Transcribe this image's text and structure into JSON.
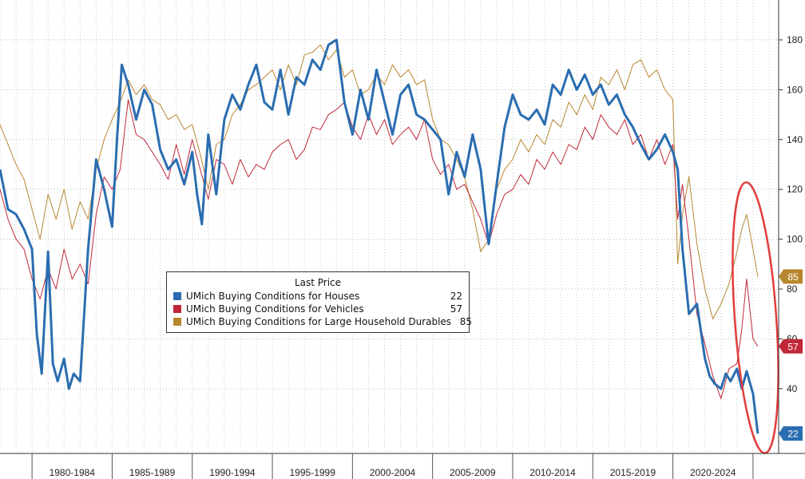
{
  "chart_data": {
    "type": "line",
    "title": "",
    "xlabel": "",
    "ylabel": "",
    "ylim": [
      14,
      196
    ],
    "xlim": [
      1978.0,
      2026.6
    ],
    "y_ticks": [
      40,
      60,
      80,
      100,
      120,
      140,
      160,
      180
    ],
    "y_tick_labels": [
      "40",
      "60",
      "80",
      "100",
      "120",
      "140",
      "160",
      "180"
    ],
    "x_period_labels": [
      "1980-1984",
      "1985-1989",
      "1990-1994",
      "1995-1999",
      "2000-2004",
      "2005-2009",
      "2010-2014",
      "2015-2019",
      "2020-2024"
    ],
    "x_period_starts": [
      1980,
      1985,
      1990,
      1995,
      2000,
      2005,
      2010,
      2015,
      2020
    ],
    "x_period_end": 2025,
    "grid": true,
    "legend": {
      "title": "Last Price",
      "position": "center-left"
    },
    "series": [
      {
        "name": "UMich Buying Conditions for Houses",
        "last": "22",
        "color": "#2a6db0",
        "x": [
          1978.0,
          1978.5,
          1979.0,
          1979.5,
          1980.0,
          1980.3,
          1980.6,
          1981.0,
          1981.3,
          1981.6,
          1982.0,
          1982.3,
          1982.6,
          1983.0,
          1983.5,
          1984.0,
          1984.5,
          1985.0,
          1985.3,
          1985.6,
          1986.0,
          1986.5,
          1987.0,
          1987.5,
          1988.0,
          1988.5,
          1989.0,
          1989.5,
          1990.0,
          1990.3,
          1990.6,
          1991.0,
          1991.5,
          1992.0,
          1992.5,
          1993.0,
          1993.5,
          1994.0,
          1994.5,
          1995.0,
          1995.5,
          1996.0,
          1996.5,
          1997.0,
          1997.5,
          1998.0,
          1998.5,
          1999.0,
          1999.5,
          2000.0,
          2000.5,
          2001.0,
          2001.5,
          2002.0,
          2002.5,
          2003.0,
          2003.5,
          2004.0,
          2004.5,
          2005.0,
          2005.5,
          2006.0,
          2006.5,
          2007.0,
          2007.5,
          2008.0,
          2008.5,
          2009.0,
          2009.5,
          2010.0,
          2010.5,
          2011.0,
          2011.5,
          2012.0,
          2012.5,
          2013.0,
          2013.5,
          2014.0,
          2014.5,
          2015.0,
          2015.5,
          2016.0,
          2016.5,
          2017.0,
          2017.5,
          2018.0,
          2018.5,
          2019.0,
          2019.5,
          2020.0,
          2020.3,
          2020.6,
          2021.0,
          2021.5,
          2022.0,
          2022.3,
          2022.6,
          2023.0,
          2023.3,
          2023.6,
          2024.0,
          2024.3,
          2024.6,
          2025.0,
          2025.3
        ],
        "y": [
          128,
          112,
          110,
          104,
          96,
          62,
          46,
          95,
          50,
          43,
          52,
          40,
          46,
          43,
          96,
          132,
          120,
          105,
          140,
          170,
          162,
          148,
          160,
          154,
          136,
          128,
          132,
          122,
          135,
          118,
          106,
          142,
          118,
          148,
          158,
          152,
          162,
          170,
          155,
          152,
          168,
          150,
          165,
          162,
          172,
          168,
          178,
          180,
          155,
          142,
          160,
          148,
          168,
          155,
          142,
          158,
          162,
          150,
          148,
          144,
          140,
          118,
          135,
          125,
          142,
          128,
          98,
          122,
          145,
          158,
          150,
          148,
          152,
          146,
          162,
          158,
          168,
          160,
          166,
          158,
          162,
          154,
          158,
          150,
          145,
          138,
          132,
          136,
          142,
          135,
          128,
          96,
          70,
          74,
          52,
          45,
          42,
          40,
          46,
          43,
          48,
          40,
          47,
          38,
          22
        ]
      },
      {
        "name": "UMich Buying Conditions for Vehicles",
        "last": "57",
        "color": "#c0283a",
        "x": [
          1978.0,
          1978.5,
          1979.0,
          1979.5,
          1980.0,
          1980.5,
          1981.0,
          1981.5,
          1982.0,
          1982.5,
          1983.0,
          1983.5,
          1984.0,
          1984.5,
          1985.0,
          1985.5,
          1986.0,
          1986.5,
          1987.0,
          1987.5,
          1988.0,
          1988.5,
          1989.0,
          1989.5,
          1990.0,
          1990.5,
          1991.0,
          1991.5,
          1992.0,
          1992.5,
          1993.0,
          1993.5,
          1994.0,
          1994.5,
          1995.0,
          1995.5,
          1996.0,
          1996.5,
          1997.0,
          1997.5,
          1998.0,
          1998.5,
          1999.0,
          1999.5,
          2000.0,
          2000.5,
          2001.0,
          2001.5,
          2002.0,
          2002.5,
          2003.0,
          2003.5,
          2004.0,
          2004.5,
          2005.0,
          2005.5,
          2006.0,
          2006.5,
          2007.0,
          2007.5,
          2008.0,
          2008.5,
          2009.0,
          2009.5,
          2010.0,
          2010.5,
          2011.0,
          2011.5,
          2012.0,
          2012.5,
          2013.0,
          2013.5,
          2014.0,
          2014.5,
          2015.0,
          2015.5,
          2016.0,
          2016.5,
          2017.0,
          2017.5,
          2018.0,
          2018.5,
          2019.0,
          2019.5,
          2020.0,
          2020.3,
          2020.6,
          2021.0,
          2021.5,
          2022.0,
          2022.5,
          2023.0,
          2023.5,
          2024.0,
          2024.3,
          2024.6,
          2025.0,
          2025.3
        ],
        "y": [
          120,
          108,
          100,
          96,
          84,
          76,
          88,
          80,
          96,
          84,
          90,
          82,
          110,
          125,
          120,
          128,
          156,
          142,
          140,
          135,
          130,
          124,
          138,
          126,
          140,
          128,
          116,
          132,
          130,
          122,
          132,
          125,
          130,
          128,
          135,
          138,
          140,
          132,
          136,
          145,
          144,
          150,
          152,
          155,
          145,
          140,
          150,
          142,
          148,
          138,
          142,
          145,
          140,
          148,
          132,
          126,
          130,
          120,
          122,
          115,
          108,
          98,
          110,
          118,
          120,
          126,
          122,
          132,
          128,
          135,
          130,
          138,
          136,
          145,
          140,
          150,
          145,
          142,
          148,
          138,
          142,
          132,
          140,
          130,
          138,
          108,
          122,
          100,
          70,
          58,
          45,
          36,
          48,
          50,
          64,
          84,
          60,
          57
        ]
      },
      {
        "name": "UMich Buying Conditions for Large Household Durables",
        "last": "85",
        "color": "#b8862e",
        "x": [
          1978.0,
          1978.5,
          1979.0,
          1979.5,
          1980.0,
          1980.5,
          1981.0,
          1981.5,
          1982.0,
          1982.5,
          1983.0,
          1983.5,
          1984.0,
          1984.5,
          1985.0,
          1985.5,
          1986.0,
          1986.5,
          1987.0,
          1987.5,
          1988.0,
          1988.5,
          1989.0,
          1989.5,
          1990.0,
          1990.5,
          1991.0,
          1991.5,
          1992.0,
          1992.5,
          1993.0,
          1993.5,
          1994.0,
          1994.5,
          1995.0,
          1995.5,
          1996.0,
          1996.5,
          1997.0,
          1997.5,
          1998.0,
          1998.5,
          1999.0,
          1999.5,
          2000.0,
          2000.5,
          2001.0,
          2001.5,
          2002.0,
          2002.5,
          2003.0,
          2003.5,
          2004.0,
          2004.5,
          2005.0,
          2005.5,
          2006.0,
          2006.5,
          2007.0,
          2007.5,
          2008.0,
          2008.5,
          2009.0,
          2009.5,
          2010.0,
          2010.5,
          2011.0,
          2011.5,
          2012.0,
          2012.5,
          2013.0,
          2013.5,
          2014.0,
          2014.5,
          2015.0,
          2015.5,
          2016.0,
          2016.5,
          2017.0,
          2017.5,
          2018.0,
          2018.5,
          2019.0,
          2019.5,
          2020.0,
          2020.3,
          2020.6,
          2021.0,
          2021.5,
          2022.0,
          2022.5,
          2023.0,
          2023.5,
          2024.0,
          2024.3,
          2024.6,
          2025.0,
          2025.3
        ],
        "y": [
          146,
          138,
          130,
          124,
          112,
          100,
          118,
          108,
          120,
          104,
          115,
          108,
          128,
          140,
          148,
          155,
          164,
          158,
          162,
          156,
          154,
          148,
          150,
          144,
          146,
          134,
          120,
          138,
          140,
          150,
          154,
          160,
          162,
          165,
          168,
          160,
          170,
          162,
          174,
          175,
          178,
          172,
          176,
          165,
          168,
          158,
          160,
          166,
          162,
          170,
          165,
          168,
          162,
          164,
          148,
          140,
          138,
          132,
          125,
          112,
          95,
          100,
          120,
          128,
          132,
          140,
          135,
          142,
          138,
          148,
          145,
          155,
          150,
          158,
          152,
          165,
          162,
          168,
          160,
          170,
          172,
          165,
          168,
          160,
          156,
          90,
          110,
          125,
          98,
          80,
          68,
          74,
          82,
          95,
          104,
          110,
          96,
          85
        ]
      }
    ]
  }
}
